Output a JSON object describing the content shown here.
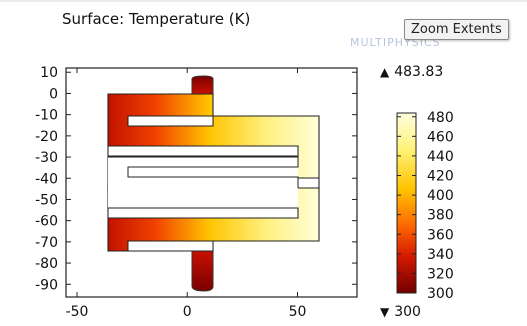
{
  "plot": {
    "title": "Surface: Temperature (K)",
    "watermark": "MULTIPHYSICS"
  },
  "tooltip": {
    "label": "Zoom Extents"
  },
  "range": {
    "max": "483.83",
    "min": "300"
  },
  "axes": {
    "x_ticks": [
      "-50",
      "0",
      "50"
    ],
    "y_ticks": [
      "10",
      "0",
      "-10",
      "-20",
      "-30",
      "-40",
      "-50",
      "-60",
      "-70",
      "-80",
      "-90"
    ]
  },
  "colorbar": {
    "ticks": [
      "480",
      "460",
      "440",
      "420",
      "400",
      "380",
      "360",
      "340",
      "320",
      "300"
    ]
  },
  "colors": {
    "hot": "#ffffd0",
    "warm": "#ffd400",
    "mid": "#ff4400",
    "cool": "#a00000",
    "cold": "#6e0000"
  },
  "chart_data": {
    "type": "heatmap",
    "title": "Surface: Temperature (K)",
    "xlim": [
      -55,
      77
    ],
    "ylim": [
      -96,
      12
    ],
    "x_ticks": [
      -50,
      0,
      50
    ],
    "y_ticks": [
      10,
      0,
      -10,
      -20,
      -30,
      -40,
      -50,
      -60,
      -70,
      -80,
      -90
    ],
    "colorbar_ticks": [
      480,
      460,
      440,
      420,
      400,
      380,
      360,
      340,
      320,
      300
    ],
    "value_max": 483.83,
    "value_min": 300,
    "colormap": "heat"
  }
}
